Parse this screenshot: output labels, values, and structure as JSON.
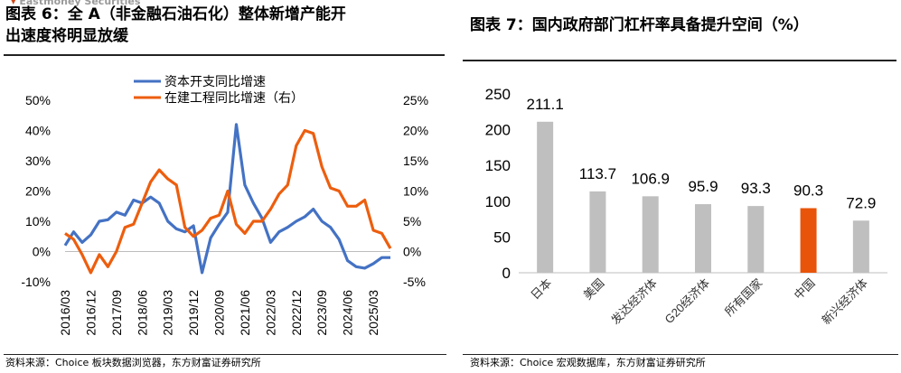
{
  "left": {
    "title_line1": "图表 6：全 A（非金融石油石化）整体新增产能开",
    "title_line2": "出速度将明显放缓",
    "watermark": "Eastmoney Securities",
    "source": "资料来源：Choice 板块数据浏览器，东方财富证券研究所",
    "chart_data": {
      "type": "line",
      "left_axis": {
        "ticks": [
          "50%",
          "40%",
          "30%",
          "20%",
          "10%",
          "0%",
          "-10%"
        ],
        "ylim": [
          -0.1,
          0.5
        ]
      },
      "right_axis": {
        "ticks": [
          "25%",
          "20%",
          "15%",
          "10%",
          "5%",
          "0%",
          "-5%"
        ],
        "ylim": [
          -0.05,
          0.25
        ]
      },
      "x_ticks": [
        "2016/03",
        "2016/12",
        "2017/09",
        "2018/06",
        "2019/03",
        "2019/12",
        "2020/09",
        "2021/06",
        "2022/03",
        "2022/12",
        "2023/09",
        "2024/06",
        "2025/03"
      ],
      "series": [
        {
          "name": "资本开支同比增速",
          "axis": "left",
          "color": "#4472C4",
          "values": [
            0.02,
            0.065,
            0.03,
            0.055,
            0.1,
            0.105,
            0.13,
            0.12,
            0.17,
            0.16,
            0.18,
            0.16,
            0.1,
            0.075,
            0.065,
            0.085,
            -0.07,
            0.045,
            0.09,
            0.13,
            0.42,
            0.22,
            0.16,
            0.11,
            0.03,
            0.065,
            0.08,
            0.1,
            0.115,
            0.14,
            0.1,
            0.08,
            0.04,
            -0.03,
            -0.05,
            -0.055,
            -0.04,
            -0.02,
            -0.02
          ]
        },
        {
          "name": "在建工程同比增速（右）",
          "axis": "right",
          "color": "#ED5E0E",
          "values": [
            0.03,
            0.02,
            -0.005,
            -0.035,
            -0.005,
            -0.025,
            0.0,
            0.04,
            0.045,
            0.08,
            0.115,
            0.135,
            0.12,
            0.11,
            0.04,
            0.025,
            0.035,
            0.055,
            0.06,
            0.1,
            0.045,
            0.03,
            0.05,
            0.05,
            0.07,
            0.095,
            0.11,
            0.175,
            0.2,
            0.195,
            0.14,
            0.105,
            0.1,
            0.075,
            0.075,
            0.085,
            0.035,
            0.03,
            0.005
          ]
        }
      ]
    }
  },
  "right": {
    "title": "图表 7：国内政府部门杠杆率具备提升空间（%）",
    "source": "资料来源：Choice 宏观数据库，东方财富证券研究所",
    "chart_data": {
      "type": "bar",
      "categories": [
        "日本",
        "美国",
        "发达经济体",
        "G20经济体",
        "所有国家",
        "中国",
        "新兴经济体"
      ],
      "values": [
        211.1,
        113.7,
        106.9,
        95.9,
        93.3,
        90.3,
        72.9
      ],
      "value_labels": [
        "211.1",
        "113.7",
        "106.9",
        "95.9",
        "93.3",
        "90.3",
        "72.9"
      ],
      "colors": [
        "#BFBFBF",
        "#BFBFBF",
        "#BFBFBF",
        "#BFBFBF",
        "#BFBFBF",
        "#E8540A",
        "#BFBFBF"
      ],
      "y_ticks": [
        "250",
        "200",
        "150",
        "100",
        "50",
        "0"
      ],
      "ylim": [
        0,
        250
      ]
    }
  }
}
